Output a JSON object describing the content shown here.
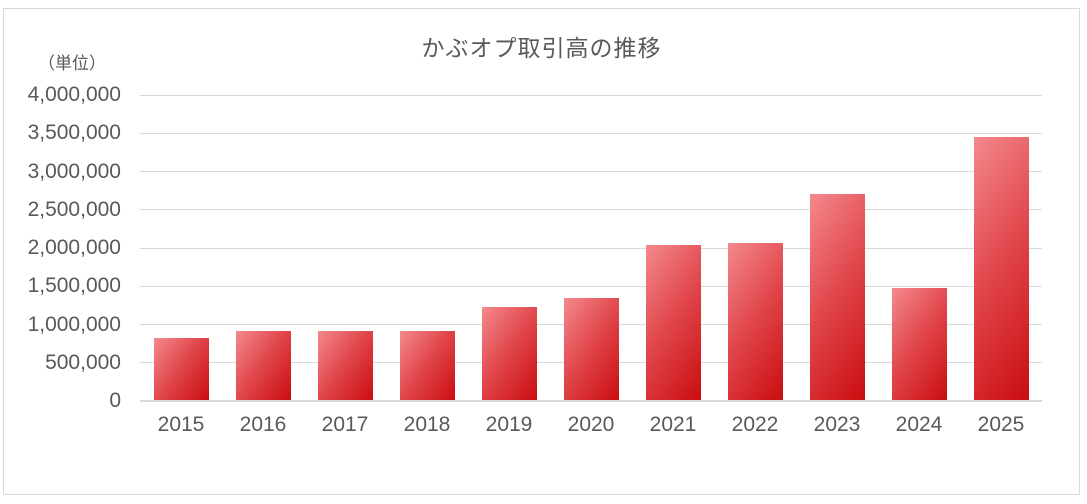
{
  "chart_data": {
    "type": "bar",
    "title": "かぶオプ取引高の推移",
    "unit_label": "（単位）",
    "categories": [
      "2015",
      "2016",
      "2017",
      "2018",
      "2019",
      "2020",
      "2021",
      "2022",
      "2023",
      "2024",
      "2025"
    ],
    "values": [
      830000,
      910000,
      910000,
      910000,
      1230000,
      1350000,
      2040000,
      2060000,
      2700000,
      1480000,
      3450000
    ],
    "xlabel": "",
    "ylabel": "（単位）",
    "ylim": [
      0,
      4000000
    ],
    "y_tick_step": 500000,
    "y_tick_labels": [
      "0",
      "500,000",
      "1,000,000",
      "1,500,000",
      "2,000,000",
      "2,500,000",
      "3,000,000",
      "3,500,000",
      "4,000,000"
    ],
    "grid": true,
    "legend": false,
    "colors": {
      "bar_gradient_light": "#F4898D",
      "bar_gradient_mid": "#E0464B",
      "bar_gradient_dark": "#CA0D10",
      "text": "#595959",
      "gridline": "#D9D9D9",
      "frame_border": "#D9D9D9"
    }
  }
}
